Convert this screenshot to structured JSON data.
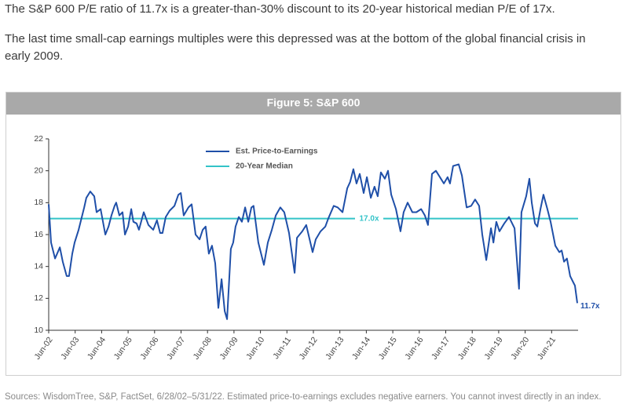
{
  "intro": [
    "The S&P 600 P/E ratio of 11.7x is a greater-than-30% discount to its 20-year historical median P/E of 17x.",
    "The last time small-cap earnings multiples were this depressed was at the bottom of the global financial crisis in early 2009."
  ],
  "chart_data": {
    "type": "line",
    "title": "Figure 5: S&P 600",
    "x": [
      2002.42,
      2002.51,
      2002.66,
      2002.84,
      2002.95,
      2003.1,
      2003.19,
      2003.31,
      2003.4,
      2003.55,
      2003.76,
      2003.84,
      2003.99,
      2004.14,
      2004.23,
      2004.38,
      2004.56,
      2004.68,
      2004.79,
      2004.91,
      2004.97,
      2005.09,
      2005.21,
      2005.3,
      2005.42,
      2005.54,
      2005.62,
      2005.74,
      2005.83,
      2006.01,
      2006.19,
      2006.37,
      2006.51,
      2006.63,
      2006.72,
      2006.84,
      2006.99,
      2007.17,
      2007.32,
      2007.41,
      2007.52,
      2007.7,
      2007.82,
      2007.97,
      2008.12,
      2008.24,
      2008.35,
      2008.47,
      2008.59,
      2008.71,
      2008.83,
      2008.95,
      2009.07,
      2009.16,
      2009.3,
      2009.39,
      2009.48,
      2009.6,
      2009.72,
      2009.84,
      2009.96,
      2010.08,
      2010.16,
      2010.34,
      2010.55,
      2010.7,
      2010.85,
      2011.0,
      2011.17,
      2011.32,
      2011.5,
      2011.71,
      2011.8,
      2012.0,
      2012.15,
      2012.39,
      2012.51,
      2012.69,
      2012.87,
      2012.98,
      2013.19,
      2013.34,
      2013.52,
      2013.7,
      2013.81,
      2013.93,
      2014.05,
      2014.17,
      2014.32,
      2014.44,
      2014.59,
      2014.73,
      2014.85,
      2014.97,
      2015.12,
      2015.24,
      2015.36,
      2015.54,
      2015.71,
      2015.83,
      2015.98,
      2016.16,
      2016.31,
      2016.49,
      2016.63,
      2016.75,
      2016.9,
      2017.05,
      2017.2,
      2017.35,
      2017.49,
      2017.58,
      2017.7,
      2017.91,
      2018.03,
      2018.21,
      2018.38,
      2018.53,
      2018.68,
      2018.8,
      2018.95,
      2019.13,
      2019.22,
      2019.33,
      2019.45,
      2019.63,
      2019.81,
      2020.02,
      2020.19,
      2020.28,
      2020.46,
      2020.58,
      2020.67,
      2020.79,
      2020.88,
      2021.0,
      2021.11,
      2021.26,
      2021.38,
      2021.56,
      2021.71,
      2021.8,
      2021.89,
      2022.0,
      2022.12,
      2022.24,
      2022.3,
      2022.39
    ],
    "series": [
      {
        "name": "Est. Price-to-Earnings",
        "color": "#1f4fa8",
        "values": [
          17.9,
          15.5,
          14.5,
          15.2,
          14.3,
          13.4,
          13.4,
          14.8,
          15.5,
          16.3,
          17.7,
          18.3,
          18.7,
          18.4,
          17.4,
          17.6,
          16.0,
          16.5,
          17.2,
          17.8,
          18.0,
          17.2,
          17.4,
          16.0,
          16.5,
          17.6,
          16.8,
          16.7,
          16.3,
          17.4,
          16.6,
          16.3,
          16.9,
          16.1,
          16.1,
          17.1,
          17.5,
          17.8,
          18.5,
          18.6,
          17.2,
          17.7,
          17.9,
          16.0,
          15.7,
          16.3,
          16.5,
          14.8,
          15.3,
          14.2,
          11.4,
          13.2,
          11.2,
          10.7,
          15.1,
          15.5,
          16.5,
          17.1,
          16.8,
          17.7,
          16.8,
          17.7,
          17.8,
          15.5,
          14.1,
          15.5,
          16.3,
          17.2,
          17.7,
          17.4,
          16.1,
          13.6,
          15.8,
          16.2,
          16.6,
          14.9,
          15.7,
          16.2,
          16.5,
          17.0,
          17.8,
          17.7,
          17.4,
          18.9,
          19.3,
          20.1,
          19.2,
          19.8,
          18.6,
          19.6,
          18.3,
          19.0,
          18.4,
          19.9,
          19.5,
          20.0,
          18.5,
          17.6,
          16.2,
          17.4,
          18.0,
          17.4,
          17.4,
          17.6,
          17.2,
          16.6,
          19.8,
          20.0,
          19.6,
          19.2,
          19.6,
          19.2,
          20.3,
          20.4,
          19.7,
          17.7,
          17.8,
          18.2,
          17.8,
          16.0,
          14.4,
          16.4,
          15.5,
          16.8,
          16.2,
          16.7,
          17.1,
          16.4,
          12.6,
          17.4,
          18.4,
          19.5,
          18.0,
          16.7,
          16.5,
          17.6,
          18.5,
          17.6,
          16.8,
          15.3,
          14.9,
          15.0,
          14.3,
          14.5,
          13.4,
          13.0,
          12.8,
          11.7
        ],
        "end_label": "11.7x"
      }
    ],
    "reference_lines": [
      {
        "name": "20-Year Median",
        "value": 17,
        "label": "17.0x",
        "color": "#33c3c8"
      }
    ],
    "xlim": [
      2002.42,
      2022.42
    ],
    "xticks": [
      {
        "value": 2002.42,
        "label": "Jun-02"
      },
      {
        "value": 2003.42,
        "label": "Jun-03"
      },
      {
        "value": 2004.42,
        "label": "Jun-04"
      },
      {
        "value": 2005.42,
        "label": "Jun-05"
      },
      {
        "value": 2006.42,
        "label": "Jun-06"
      },
      {
        "value": 2007.42,
        "label": "Jun-07"
      },
      {
        "value": 2008.42,
        "label": "Jun-08"
      },
      {
        "value": 2009.42,
        "label": "Jun-09"
      },
      {
        "value": 2010.42,
        "label": "Jun-10"
      },
      {
        "value": 2011.42,
        "label": "Jun-11"
      },
      {
        "value": 2012.42,
        "label": "Jun-12"
      },
      {
        "value": 2013.42,
        "label": "Jun-13"
      },
      {
        "value": 2014.42,
        "label": "Jun-14"
      },
      {
        "value": 2015.42,
        "label": "Jun-15"
      },
      {
        "value": 2016.42,
        "label": "Jun-16"
      },
      {
        "value": 2017.42,
        "label": "Jun-17"
      },
      {
        "value": 2018.42,
        "label": "Jun-18"
      },
      {
        "value": 2019.42,
        "label": "Jun-19"
      },
      {
        "value": 2020.42,
        "label": "Jun-20"
      },
      {
        "value": 2021.42,
        "label": "Jun-21"
      }
    ],
    "ylim": [
      10,
      22
    ],
    "yticks": [
      10,
      12,
      14,
      16,
      18,
      20,
      22
    ],
    "grid": false
  },
  "source": "Sources: WisdomTree, S&P, FactSet, 6/28/02–5/31/22. Estimated price-to-earnings excludes negative earners. You cannot invest directly in an index."
}
